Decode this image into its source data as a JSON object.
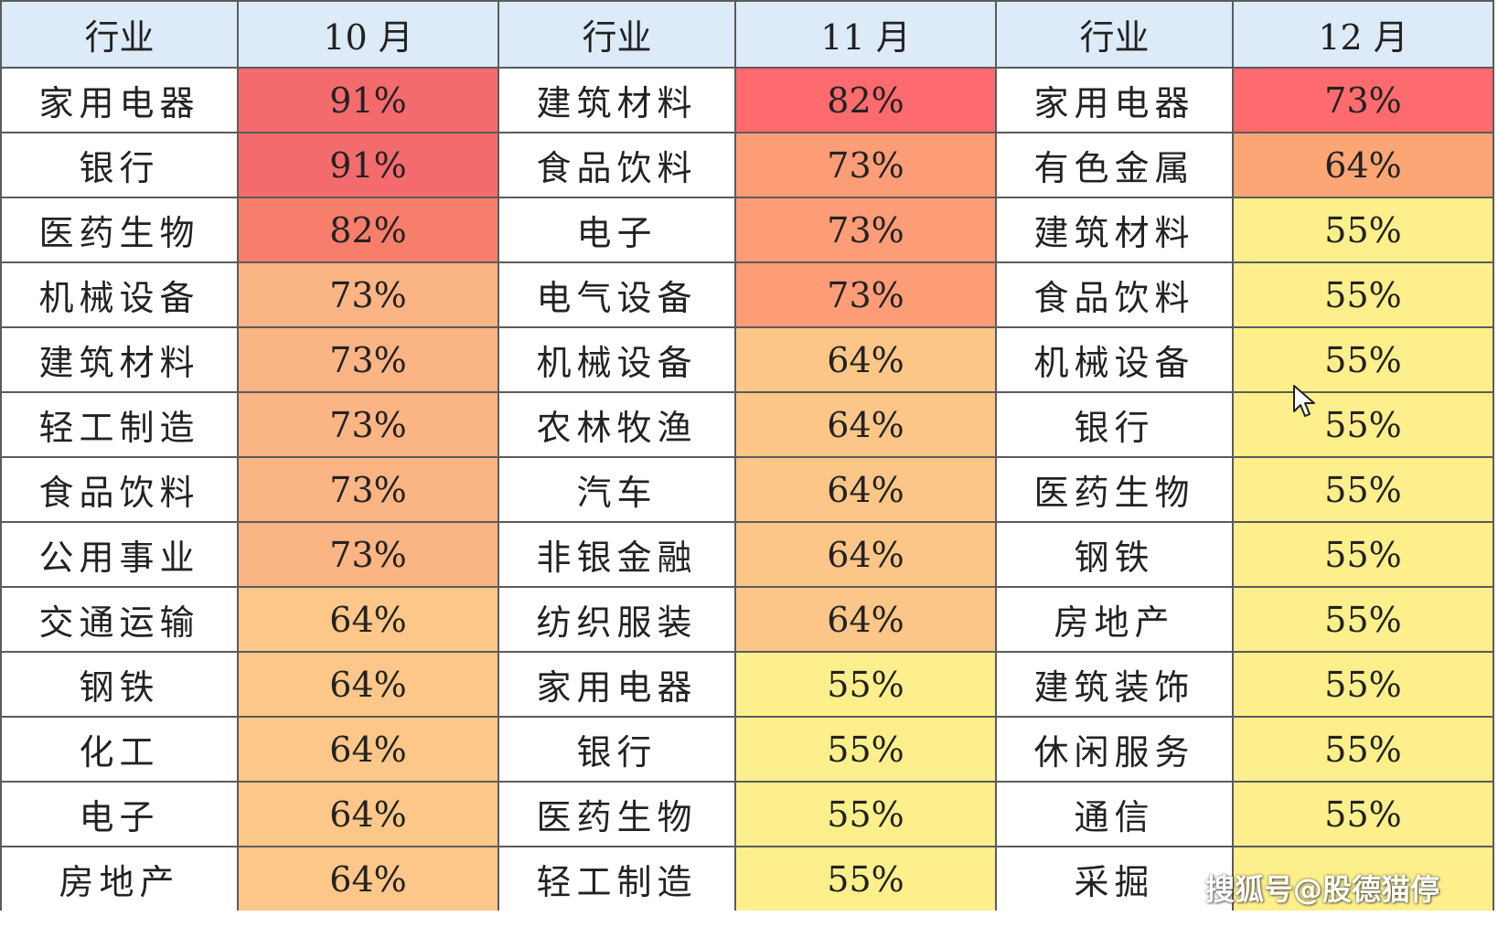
{
  "chart_data": {
    "type": "table",
    "headers": [
      "行业",
      "10 月",
      "行业",
      "11 月",
      "行业",
      "12 月"
    ],
    "months": [
      {
        "month": "10 月",
        "rows": [
          {
            "industry": "家用电器",
            "value": "91%"
          },
          {
            "industry": "银行",
            "value": "91%"
          },
          {
            "industry": "医药生物",
            "value": "82%"
          },
          {
            "industry": "机械设备",
            "value": "73%"
          },
          {
            "industry": "建筑材料",
            "value": "73%"
          },
          {
            "industry": "轻工制造",
            "value": "73%"
          },
          {
            "industry": "食品饮料",
            "value": "73%"
          },
          {
            "industry": "公用事业",
            "value": "73%"
          },
          {
            "industry": "交通运输",
            "value": "64%"
          },
          {
            "industry": "钢铁",
            "value": "64%"
          },
          {
            "industry": "化工",
            "value": "64%"
          },
          {
            "industry": "电子",
            "value": "64%"
          },
          {
            "industry": "房地产",
            "value": "64%"
          }
        ]
      },
      {
        "month": "11 月",
        "rows": [
          {
            "industry": "建筑材料",
            "value": "82%"
          },
          {
            "industry": "食品饮料",
            "value": "73%"
          },
          {
            "industry": "电子",
            "value": "73%"
          },
          {
            "industry": "电气设备",
            "value": "73%"
          },
          {
            "industry": "机械设备",
            "value": "64%"
          },
          {
            "industry": "农林牧渔",
            "value": "64%"
          },
          {
            "industry": "汽车",
            "value": "64%"
          },
          {
            "industry": "非银金融",
            "value": "64%"
          },
          {
            "industry": "纺织服装",
            "value": "64%"
          },
          {
            "industry": "家用电器",
            "value": "55%"
          },
          {
            "industry": "银行",
            "value": "55%"
          },
          {
            "industry": "医药生物",
            "value": "55%"
          },
          {
            "industry": "轻工制造",
            "value": "55%"
          }
        ]
      },
      {
        "month": "12 月",
        "rows": [
          {
            "industry": "家用电器",
            "value": "73%"
          },
          {
            "industry": "有色金属",
            "value": "64%"
          },
          {
            "industry": "建筑材料",
            "value": "55%"
          },
          {
            "industry": "食品饮料",
            "value": "55%"
          },
          {
            "industry": "机械设备",
            "value": "55%"
          },
          {
            "industry": "银行",
            "value": "55%"
          },
          {
            "industry": "医药生物",
            "value": "55%"
          },
          {
            "industry": "钢铁",
            "value": "55%"
          },
          {
            "industry": "房地产",
            "value": "55%"
          },
          {
            "industry": "建筑装饰",
            "value": "55%"
          },
          {
            "industry": "休闲服务",
            "value": "55%"
          },
          {
            "industry": "通信",
            "value": "55%"
          },
          {
            "industry": "采掘",
            "value": ""
          }
        ]
      }
    ],
    "heat_colors": {
      "91%": "#f46b6d",
      "82%": "#f77e6a",
      "73%": "#fbb484",
      "64%": "#fcc788",
      "55%": "#fcee8a"
    },
    "column_heat_colors": {
      "11 月": {
        "82%": "#fe6b6f",
        "73%": "#fc9d77",
        "64%": "#fcc688",
        "55%": "#fdf08c"
      },
      "12 月": {
        "73%": "#fe6b6f",
        "64%": "#fca675",
        "55%": "#fdf08c"
      }
    },
    "header_color": "#ddeaf8"
  },
  "watermark": "搜狐号@股德猫停"
}
